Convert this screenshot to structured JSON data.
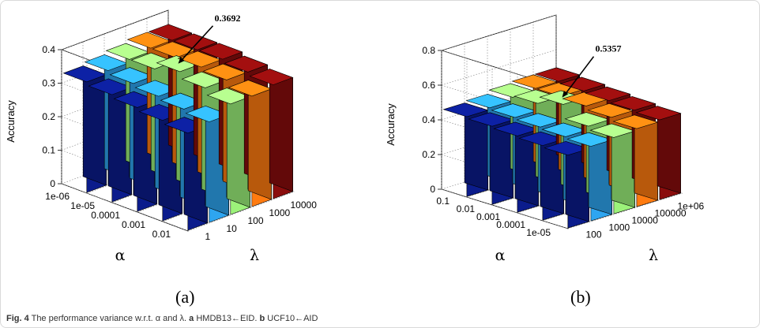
{
  "caption": {
    "fig": "Fig. 4",
    "text": "The performance variance w.r.t. α and λ.",
    "a_tag": "a",
    "a_text": "HMDB13←EID.",
    "b_tag": "b",
    "b_text": "UCF10←AID"
  },
  "chart_data": [
    {
      "type": "bar3d",
      "panel_label": "(a)",
      "ylabel": "Accuracy",
      "xlabel": "α",
      "zlabel": "λ",
      "ylim": [
        0,
        0.4
      ],
      "yticks": [
        0,
        0.1,
        0.2,
        0.3,
        0.4
      ],
      "alpha": [
        "1e-06",
        "1e-05",
        "0.0001",
        "0.001",
        "0.01"
      ],
      "lambda": [
        "1",
        "10",
        "100",
        "1000",
        "10000"
      ],
      "colors": [
        "#0b1c8c",
        "#2ea5f0",
        "#9cf27a",
        "#ff7b10",
        "#8a0d0d"
      ],
      "values": [
        [
          0.33,
          0.34,
          0.35,
          0.36,
          0.36
        ],
        [
          0.32,
          0.33,
          0.35,
          0.36,
          0.36
        ],
        [
          0.31,
          0.32,
          0.37,
          0.36,
          0.36
        ],
        [
          0.3,
          0.31,
          0.35,
          0.35,
          0.35
        ],
        [
          0.29,
          0.3,
          0.33,
          0.33,
          0.34
        ]
      ],
      "annotation": {
        "text": "0.3692",
        "alpha_index": 2,
        "lambda_index": 2
      },
      "grid": true
    },
    {
      "type": "bar3d",
      "panel_label": "(b)",
      "ylabel": "Accuracy",
      "xlabel": "α",
      "zlabel": "λ",
      "ylim": [
        0,
        0.8
      ],
      "yticks": [
        0,
        0.2,
        0.4,
        0.6,
        0.8
      ],
      "alpha": [
        "0.1",
        "0.01",
        "0.001",
        "0.0001",
        "1e-05"
      ],
      "lambda": [
        "100",
        "1000",
        "10000",
        "100000",
        "1e+06"
      ],
      "colors": [
        "#0b1c8c",
        "#2ea5f0",
        "#9cf27a",
        "#ff7b10",
        "#8a0d0d"
      ],
      "values": [
        [
          0.46,
          0.47,
          0.49,
          0.5,
          0.5
        ],
        [
          0.45,
          0.46,
          0.5,
          0.5,
          0.49
        ],
        [
          0.44,
          0.45,
          0.54,
          0.49,
          0.48
        ],
        [
          0.43,
          0.44,
          0.46,
          0.47,
          0.47
        ],
        [
          0.42,
          0.43,
          0.44,
          0.45,
          0.46
        ]
      ],
      "annotation": {
        "text": "0.5357",
        "alpha_index": 2,
        "lambda_index": 2
      },
      "grid": true
    }
  ]
}
